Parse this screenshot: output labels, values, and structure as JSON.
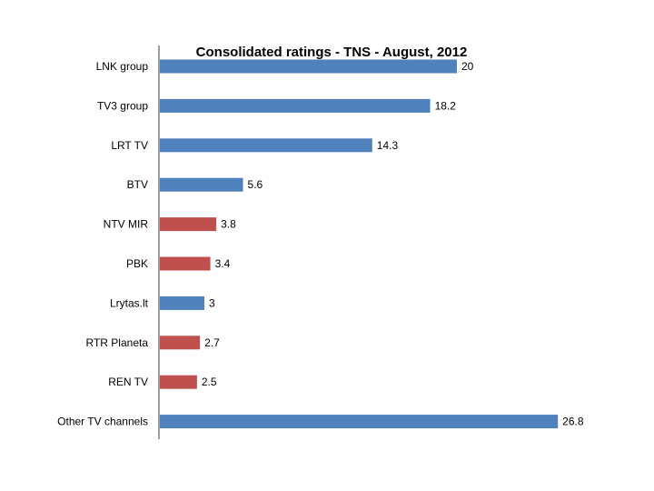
{
  "chart_data": {
    "type": "bar",
    "orientation": "horizontal",
    "title": "Consolidated ratings - TNS - August, 2012",
    "categories": [
      "LNK group",
      "TV3 group",
      "LRT TV",
      "BTV",
      "NTV MIR",
      "PBK",
      "Lrytas.lt",
      "RTR Planeta",
      "REN TV",
      "Other TV channels"
    ],
    "values": [
      20,
      18.2,
      14.3,
      5.6,
      3.8,
      3.4,
      3,
      2.7,
      2.5,
      26.8
    ],
    "value_labels": [
      "20",
      "18.2",
      "14.3",
      "5.6",
      "3.8",
      "3.4",
      "3",
      "2.7",
      "2.5",
      "26.8"
    ],
    "bar_colors": [
      "#4f81bd",
      "#4f81bd",
      "#4f81bd",
      "#4f81bd",
      "#c0504d",
      "#c0504d",
      "#4f81bd",
      "#c0504d",
      "#c0504d",
      "#4f81bd"
    ],
    "xlim": [
      0,
      27
    ],
    "grid": false,
    "legend": "none",
    "xlabel": "",
    "ylabel": ""
  }
}
